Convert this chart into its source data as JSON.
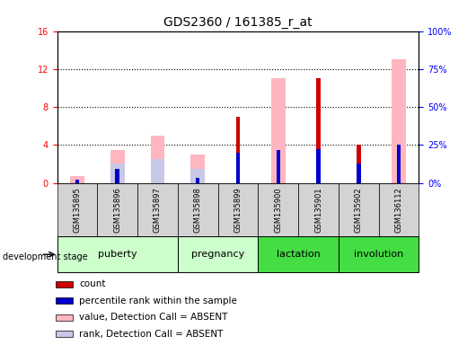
{
  "title": "GDS2360 / 161385_r_at",
  "samples": [
    "GSM135895",
    "GSM135896",
    "GSM135897",
    "GSM135898",
    "GSM135899",
    "GSM135900",
    "GSM135901",
    "GSM135902",
    "GSM136112"
  ],
  "count_values": [
    0.0,
    0.0,
    0.0,
    0.0,
    7.0,
    0.0,
    11.0,
    4.0,
    0.0
  ],
  "percentile_values": [
    0.3,
    1.5,
    0.0,
    0.5,
    3.2,
    3.5,
    3.6,
    2.0,
    4.0
  ],
  "absent_value_values": [
    0.7,
    3.5,
    5.0,
    3.0,
    0.0,
    11.0,
    0.0,
    0.0,
    13.0
  ],
  "absent_rank_values": [
    0.0,
    2.0,
    2.5,
    1.5,
    0.0,
    0.0,
    0.0,
    0.0,
    0.0
  ],
  "left_ylim": [
    0,
    16
  ],
  "left_yticks": [
    0,
    4,
    8,
    12,
    16
  ],
  "right_ylim": [
    0,
    100
  ],
  "right_yticks": [
    0,
    25,
    50,
    75,
    100
  ],
  "right_yticklabels": [
    "0%",
    "25%",
    "50%",
    "75%",
    "100%"
  ],
  "color_count": "#cc0000",
  "color_percentile": "#0000cc",
  "color_absent_value": "#ffb6c1",
  "color_absent_rank": "#c8c8e8",
  "stage_puberty_color": "#ccffcc",
  "stage_pregnancy_color": "#ccffcc",
  "stage_lactation_color": "#44dd44",
  "stage_involution_color": "#44dd44",
  "title_fontsize": 10,
  "tick_fontsize": 7,
  "legend_fontsize": 7.5
}
